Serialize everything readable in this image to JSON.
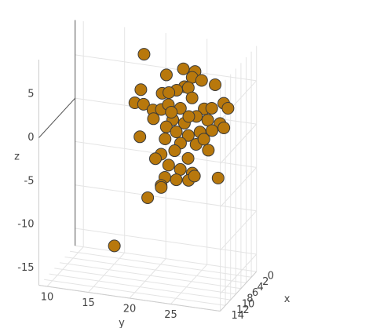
{
  "chart_data": {
    "type": "scatter3d",
    "x": [
      3,
      9,
      5,
      11,
      7,
      4,
      10,
      6,
      8,
      2,
      3,
      9,
      5,
      11,
      7,
      4,
      10,
      6,
      8,
      2,
      3,
      9,
      5,
      11,
      7,
      4,
      10,
      6,
      8,
      2,
      3,
      9,
      5,
      11,
      7,
      4,
      10,
      6,
      8,
      2,
      3,
      9,
      5,
      11,
      7,
      4,
      10,
      6,
      8,
      2,
      3,
      9,
      5,
      11,
      7,
      4,
      10,
      6,
      8,
      2
    ],
    "y": [
      18.3,
      22.9,
      23.7,
      27.0,
      25.4,
      25.6,
      25.4,
      23.2,
      28.5,
      17.6,
      20.5,
      23.2,
      24.3,
      19.7,
      19.5,
      19.7,
      22.6,
      22.2,
      25.7,
      22.4,
      25.6,
      28.4,
      28.6,
      31.0,
      20.7,
      22.1,
      25.4,
      25.6,
      27.6,
      27.2,
      21.0,
      24.1,
      24.3,
      27.6,
      27.8,
      28.3,
      20.0,
      21.8,
      24.3,
      24.3,
      26.1,
      23.9,
      21.0,
      22.2,
      24.9,
      21.6,
      24.9,
      25.1,
      22.4,
      21.9,
      23.7,
      26.3,
      21.0,
      29.8,
      20.0,
      20.7,
      16.9,
      26.5,
      25.3,
      21.3
    ],
    "z": [
      7.3,
      7.5,
      7.0,
      9.1,
      6.9,
      5.6,
      6.8,
      4.8,
      6.8,
      2.8,
      3.1,
      5.5,
      4.9,
      4.5,
      3.0,
      1.4,
      3.8,
      3.0,
      4.9,
      1.3,
      2.0,
      4.4,
      3.7,
      5.4,
      1.5,
      0.6,
      2.6,
      2.1,
      2.6,
      0.2,
      -0.7,
      1.1,
      -0.6,
      2.2,
      1.1,
      0.5,
      0.3,
      -1.0,
      -0.5,
      -2.6,
      -2.7,
      -1.1,
      -3.2,
      -1.6,
      -2.5,
      -4.7,
      -2.8,
      -4.5,
      -4.7,
      -7.0,
      -6.5,
      -3.7,
      -6.8,
      -2.8,
      -7.7,
      -7.4,
      -12.7,
      -0.4,
      2.7,
      0.7
    ],
    "color": "#b8780c",
    "xlim": [
      0,
      14
    ],
    "ylim": [
      9,
      31
    ],
    "zlim": [
      -17,
      9
    ],
    "xticks": [
      0,
      2,
      4,
      6,
      8,
      10,
      12,
      14
    ],
    "yticks": [
      10,
      15,
      20,
      25
    ],
    "zticks": [
      -15,
      -10,
      -5,
      0,
      5
    ],
    "xlabel": "x",
    "ylabel": "y",
    "zlabel": "z",
    "grid": true
  }
}
